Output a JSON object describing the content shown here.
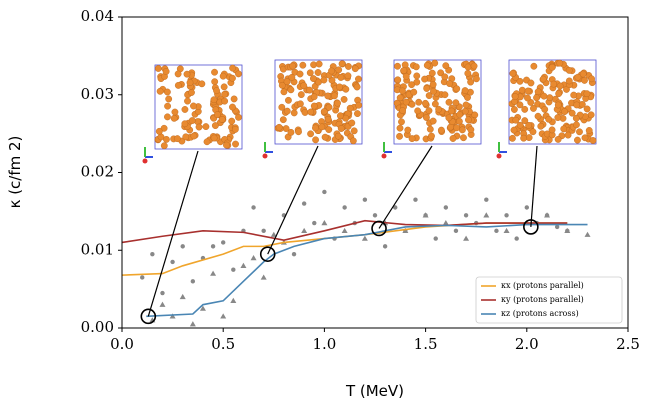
{
  "chart_data": {
    "type": "line",
    "xlabel": "T (MeV)",
    "ylabel": "κ (c/fm 2)",
    "xlim": [
      0,
      2.5
    ],
    "ylim": [
      0,
      0.04
    ],
    "xticks": [
      {
        "value": 0,
        "label": "0.0"
      },
      {
        "value": 0.5,
        "label": "0.5"
      },
      {
        "value": 1,
        "label": "1.0"
      },
      {
        "value": 1.5,
        "label": "1.5"
      },
      {
        "value": 2,
        "label": "2.0"
      },
      {
        "value": 2.5,
        "label": "2.5"
      }
    ],
    "yticks": [
      {
        "value": 0,
        "label": "0.00"
      },
      {
        "value": 0.01,
        "label": "0.01"
      },
      {
        "value": 0.02,
        "label": "0.02"
      },
      {
        "value": 0.03,
        "label": "0.03"
      },
      {
        "value": 0.04,
        "label": "0.04"
      }
    ],
    "legend": "lower right",
    "series": [
      {
        "name": "κx (protons parallel)",
        "color": "#f0a52c",
        "x": [
          0,
          0.2,
          0.3,
          0.5,
          0.6,
          0.7,
          0.8,
          1.0,
          1.2,
          1.5,
          1.8,
          2.0,
          2.2
        ],
        "values": [
          0.0068,
          0.007,
          0.008,
          0.0095,
          0.0105,
          0.0105,
          0.011,
          0.0115,
          0.012,
          0.013,
          0.0135,
          0.0135,
          0.0135
        ]
      },
      {
        "name": "κy (protons parallel)",
        "color": "#a8302e",
        "x": [
          0,
          0.2,
          0.4,
          0.6,
          0.8,
          1.0,
          1.2,
          1.4,
          1.6,
          1.8,
          2.0,
          2.2
        ],
        "values": [
          0.011,
          0.0118,
          0.0125,
          0.0123,
          0.0113,
          0.0125,
          0.0138,
          0.0133,
          0.0132,
          0.0135,
          0.0135,
          0.0135
        ]
      },
      {
        "name": "κz (protons across)",
        "color": "#4a86b4",
        "x": [
          0.12,
          0.35,
          0.4,
          0.5,
          0.6,
          0.7,
          0.75,
          0.85,
          1.0,
          1.2,
          1.4,
          1.6,
          1.8,
          2.0,
          2.3
        ],
        "values": [
          0.0015,
          0.0018,
          0.003,
          0.0035,
          0.006,
          0.0085,
          0.0095,
          0.0105,
          0.0115,
          0.012,
          0.013,
          0.0132,
          0.013,
          0.0133,
          0.0133
        ]
      }
    ],
    "points_color": "#888888",
    "circle_points": {
      "x": [
        0.25,
        0.3,
        0.35,
        0.4,
        0.45,
        0.5,
        0.55,
        0.6,
        0.65,
        0.7,
        0.8,
        0.85,
        0.9,
        0.95,
        1.0,
        1.05,
        1.1,
        1.15,
        1.2,
        1.25,
        1.3,
        1.35,
        1.4,
        1.45,
        1.5,
        1.55,
        1.6,
        1.65,
        1.7,
        1.75,
        1.8,
        1.85,
        1.9,
        1.95,
        2.0,
        2.05,
        2.1,
        2.15,
        2.2,
        0.15,
        0.2,
        0.1
      ],
      "values": [
        0.0085,
        0.0105,
        0.006,
        0.009,
        0.0105,
        0.011,
        0.0075,
        0.0125,
        0.0155,
        0.0125,
        0.0145,
        0.0095,
        0.016,
        0.0135,
        0.0175,
        0.0115,
        0.0155,
        0.0135,
        0.0165,
        0.0145,
        0.0105,
        0.0155,
        0.0125,
        0.0165,
        0.0145,
        0.0115,
        0.0155,
        0.0125,
        0.0145,
        0.0135,
        0.0165,
        0.0125,
        0.0145,
        0.0115,
        0.0155,
        0.0135,
        0.0145,
        0.013,
        0.0125,
        0.0095,
        0.0045,
        0.0065
      ]
    },
    "triangle_points": {
      "x": [
        0.15,
        0.2,
        0.25,
        0.3,
        0.35,
        0.4,
        0.45,
        0.5,
        0.55,
        0.6,
        0.65,
        0.7,
        0.75,
        0.8,
        0.9,
        1.0,
        1.1,
        1.2,
        1.3,
        1.4,
        1.5,
        1.6,
        1.7,
        1.8,
        1.9,
        2.0,
        2.1,
        2.2,
        2.3
      ],
      "values": [
        0.001,
        0.003,
        0.0015,
        0.004,
        0.0005,
        0.0025,
        0.007,
        0.0015,
        0.0035,
        0.008,
        0.009,
        0.0065,
        0.012,
        0.011,
        0.0125,
        0.0135,
        0.0125,
        0.0115,
        0.0135,
        0.0125,
        0.0145,
        0.0135,
        0.0115,
        0.0145,
        0.0125,
        0.0135,
        0.0145,
        0.0125,
        0.012
      ]
    },
    "highlights": {
      "x": [
        0.13,
        0.72,
        1.27,
        2.02
      ],
      "values": [
        0.0015,
        0.0095,
        0.0128,
        0.013
      ]
    }
  }
}
